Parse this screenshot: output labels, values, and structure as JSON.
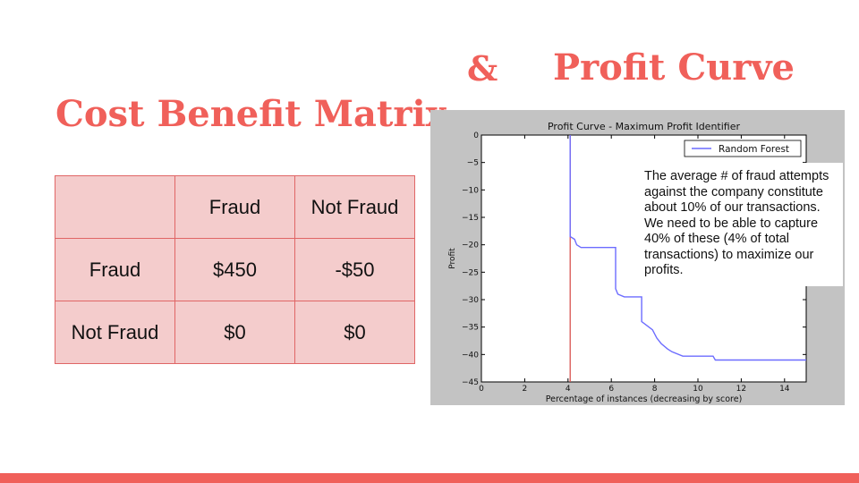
{
  "slide": {
    "ampersand": "&",
    "profit_curve_title": "Profit Curve",
    "cost_benefit_title": "Cost Benefit Matrix",
    "accent_color": "#f0605a"
  },
  "matrix": {
    "header": [
      "",
      "Fraud",
      "Not Fraud"
    ],
    "rows": [
      [
        "Fraud",
        "$450",
        "-$50"
      ],
      [
        "Not Fraud",
        "$0",
        "$0"
      ]
    ]
  },
  "note": "The average # of fraud attempts against the company constitute about 10% of our transactions.  We need to be able to capture 40% of these (4% of total transactions) to maximize our profits.",
  "chart_data": {
    "type": "line",
    "title": "Profit Curve - Maximum Profit Identifier",
    "xlabel": "Percentage of instances (decreasing by score)",
    "ylabel": "Profit",
    "xlim": [
      0,
      15
    ],
    "ylim": [
      -45,
      0
    ],
    "xticks": [
      0,
      2,
      4,
      6,
      8,
      10,
      12,
      14
    ],
    "yticks": [
      0,
      -5,
      -10,
      -15,
      -20,
      -25,
      -30,
      -35,
      -40,
      -45
    ],
    "legend_position": "top-right",
    "vline_x": 4.1,
    "vline_color": "#d9534f",
    "series": [
      {
        "name": "Random Forest",
        "color": "#6c6cff",
        "x": [
          4.1,
          4.1,
          4.3,
          4.4,
          4.6,
          6.2,
          6.2,
          6.3,
          6.6,
          7.4,
          7.4,
          7.9,
          8.1,
          8.3,
          8.6,
          8.8,
          9.3,
          10.7,
          10.8,
          15.0
        ],
        "y": [
          0,
          -18.5,
          -19.0,
          -20.0,
          -20.5,
          -20.5,
          -28.0,
          -29.0,
          -29.5,
          -29.5,
          -34.0,
          -35.5,
          -37.0,
          -38.0,
          -39.0,
          -39.5,
          -40.3,
          -40.3,
          -41.0,
          -41.0
        ]
      }
    ]
  }
}
